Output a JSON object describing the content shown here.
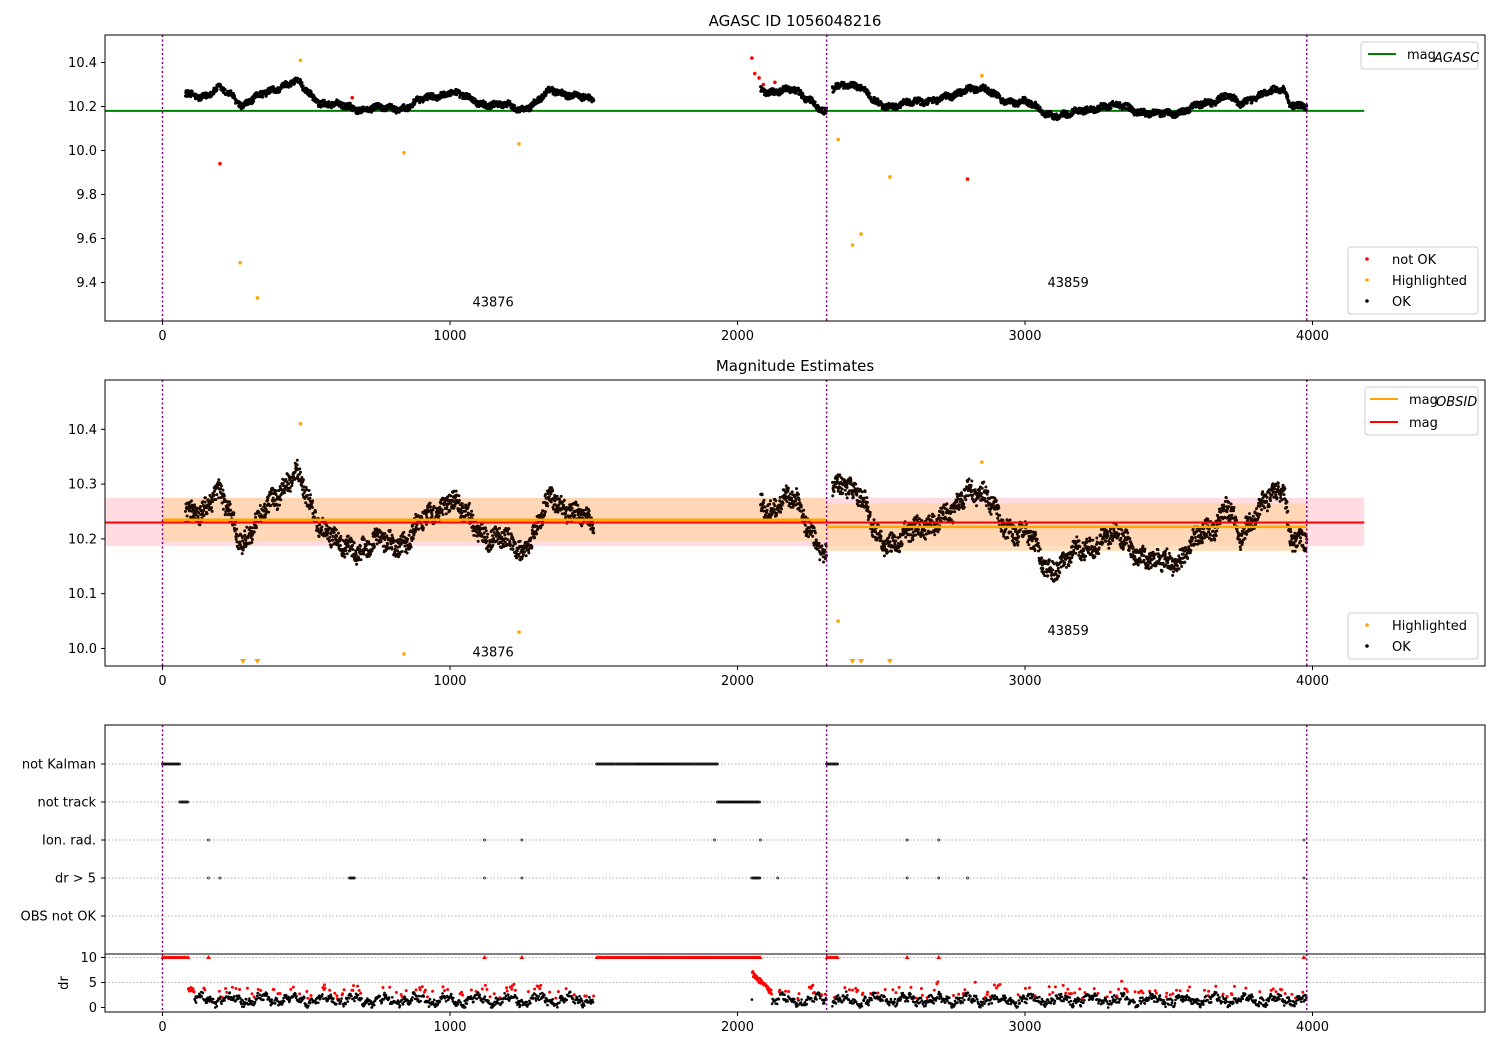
{
  "chart_data": [
    {
      "id": "top",
      "type": "scatter",
      "title": "AGASC ID 1056048216",
      "xlim": [
        -200,
        4600
      ],
      "ylim": [
        9.225,
        10.525
      ],
      "xticks": [
        "0",
        "1000",
        "2000",
        "3000",
        "4000"
      ],
      "yticks": [
        "9.4",
        "9.6",
        "9.8",
        "10.0",
        "10.2",
        "10.4"
      ],
      "colors": {
        "ok": "#000000",
        "highlighted": "#ffa500",
        "not_ok": "#ff0000",
        "agasc": "#008000",
        "obs_boundary": "#800080"
      },
      "obs_boundaries": [
        0,
        2310,
        3980
      ],
      "obsid_labels": [
        {
          "text": "43876",
          "x": 1150,
          "y": 9.29
        },
        {
          "text": "43859",
          "x": 3150,
          "y": 9.38
        }
      ],
      "mag_agasc": {
        "value": 10.18,
        "x": [
          -200,
          4180
        ]
      },
      "series": [
        {
          "name": "not OK",
          "x": [
            200,
            2050,
            2060,
            2075,
            2090,
            2130,
            2800,
            660
          ],
          "y": [
            9.94,
            10.42,
            10.35,
            10.33,
            10.3,
            10.31,
            9.87,
            10.24
          ]
        },
        {
          "name": "Highlighted",
          "x": [
            270,
            330,
            480,
            840,
            1240,
            2350,
            2400,
            2430,
            2530,
            2850
          ],
          "y": [
            9.49,
            9.33,
            10.41,
            9.99,
            10.03,
            10.05,
            9.57,
            9.62,
            9.88,
            10.34
          ]
        },
        {
          "name": "OK",
          "segments": [
            {
              "x_start": 80,
              "x_end": 1500,
              "anchors": [
                [
                  80,
                  10.27
                ],
                [
                  150,
                  10.24
                ],
                [
                  200,
                  10.28
                ],
                [
                  240,
                  10.26
                ],
                [
                  280,
                  10.2
                ],
                [
                  330,
                  10.24
                ],
                [
                  380,
                  10.28
                ],
                [
                  430,
                  10.3
                ],
                [
                  470,
                  10.31
                ],
                [
                  500,
                  10.27
                ],
                [
                  550,
                  10.22
                ],
                [
                  620,
                  10.2
                ],
                [
                  700,
                  10.19
                ],
                [
                  780,
                  10.19
                ],
                [
                  850,
                  10.2
                ],
                [
                  950,
                  10.25
                ],
                [
                  1000,
                  10.27
                ],
                [
                  1050,
                  10.24
                ],
                [
                  1100,
                  10.22
                ],
                [
                  1200,
                  10.2
                ],
                [
                  1250,
                  10.19
                ],
                [
                  1300,
                  10.22
                ],
                [
                  1350,
                  10.27
                ],
                [
                  1420,
                  10.26
                ],
                [
                  1500,
                  10.22
                ]
              ],
              "noise": 0.018
            },
            {
              "x_start": 2080,
              "x_end": 2310,
              "anchors": [
                [
                  2080,
                  10.28
                ],
                [
                  2130,
                  10.27
                ],
                [
                  2200,
                  10.27
                ],
                [
                  2260,
                  10.23
                ],
                [
                  2300,
                  10.17
                ]
              ],
              "noise": 0.018
            },
            {
              "x_start": 2330,
              "x_end": 3980,
              "anchors": [
                [
                  2330,
                  10.28
                ],
                [
                  2370,
                  10.31
                ],
                [
                  2420,
                  10.29
                ],
                [
                  2480,
                  10.22
                ],
                [
                  2560,
                  10.2
                ],
                [
                  2650,
                  10.23
                ],
                [
                  2750,
                  10.24
                ],
                [
                  2800,
                  10.29
                ],
                [
                  2850,
                  10.28
                ],
                [
                  2920,
                  10.23
                ],
                [
                  3000,
                  10.22
                ],
                [
                  3070,
                  10.17
                ],
                [
                  3150,
                  10.16
                ],
                [
                  3250,
                  10.2
                ],
                [
                  3350,
                  10.2
                ],
                [
                  3450,
                  10.16
                ],
                [
                  3550,
                  10.18
                ],
                [
                  3650,
                  10.22
                ],
                [
                  3700,
                  10.26
                ],
                [
                  3750,
                  10.2
                ],
                [
                  3830,
                  10.27
                ],
                [
                  3900,
                  10.27
                ],
                [
                  3920,
                  10.21
                ],
                [
                  3980,
                  10.21
                ]
              ],
              "noise": 0.018
            }
          ]
        }
      ],
      "legend_top": {
        "line_label": "mag",
        "line_sub": "AGASC"
      },
      "legend_bottom": [
        "not OK",
        "Highlighted",
        "OK"
      ]
    },
    {
      "id": "middle",
      "type": "scatter",
      "title": "Magnitude Estimates",
      "xlim": [
        -200,
        4600
      ],
      "ylim": [
        9.968,
        10.49
      ],
      "xticks": [
        "0",
        "1000",
        "2000",
        "3000",
        "4000"
      ],
      "yticks": [
        "10.0",
        "10.1",
        "10.2",
        "10.3",
        "10.4"
      ],
      "colors": {
        "ok": "#000000",
        "highlighted": "#ffa500",
        "mag": "#ff0000",
        "mag_obsid": "#ffa500",
        "band_mag": "#ffc0cb",
        "band_obsid": "#ffd5a8",
        "obs_boundary": "#800080"
      },
      "obs_boundaries": [
        0,
        2310,
        3980
      ],
      "obsid_labels": [
        {
          "text": "43876",
          "x": 1150,
          "y": 9.985
        },
        {
          "text": "43859",
          "x": 3150,
          "y": 10.025
        }
      ],
      "mag": {
        "value": 10.23,
        "band": [
          10.187,
          10.275
        ],
        "x": [
          -200,
          4180
        ]
      },
      "mag_obsid": [
        {
          "x": [
            0,
            2310
          ],
          "value": 10.235,
          "band": [
            10.195,
            10.275
          ]
        },
        {
          "x": [
            2310,
            3980
          ],
          "value": 10.222,
          "band": [
            10.178,
            10.265
          ]
        }
      ],
      "series": [
        {
          "name": "Highlighted",
          "x": [
            480,
            840,
            1240,
            2350,
            2850
          ],
          "y": [
            10.41,
            9.99,
            10.03,
            10.05,
            10.34
          ]
        },
        {
          "name": "Highlighted below range",
          "x": [
            280,
            330,
            2400,
            2430,
            2530
          ]
        },
        {
          "name": "OK",
          "segments": [
            {
              "x_start": 80,
              "x_end": 1500,
              "anchors": [
                [
                  80,
                  10.26
                ],
                [
                  150,
                  10.25
                ],
                [
                  200,
                  10.28
                ],
                [
                  240,
                  10.25
                ],
                [
                  280,
                  10.19
                ],
                [
                  330,
                  10.22
                ],
                [
                  380,
                  10.28
                ],
                [
                  430,
                  10.3
                ],
                [
                  470,
                  10.31
                ],
                [
                  500,
                  10.28
                ],
                [
                  550,
                  10.23
                ],
                [
                  620,
                  10.18
                ],
                [
                  700,
                  10.19
                ],
                [
                  780,
                  10.19
                ],
                [
                  850,
                  10.2
                ],
                [
                  950,
                  10.25
                ],
                [
                  1000,
                  10.28
                ],
                [
                  1050,
                  10.24
                ],
                [
                  1100,
                  10.22
                ],
                [
                  1200,
                  10.19
                ],
                [
                  1250,
                  10.18
                ],
                [
                  1300,
                  10.22
                ],
                [
                  1350,
                  10.27
                ],
                [
                  1420,
                  10.26
                ],
                [
                  1500,
                  10.21
                ]
              ],
              "noise": 0.022
            },
            {
              "x_start": 2080,
              "x_end": 2310,
              "anchors": [
                [
                  2080,
                  10.27
                ],
                [
                  2130,
                  10.26
                ],
                [
                  2200,
                  10.27
                ],
                [
                  2260,
                  10.22
                ],
                [
                  2300,
                  10.16
                ]
              ],
              "noise": 0.022
            },
            {
              "x_start": 2330,
              "x_end": 3980,
              "anchors": [
                [
                  2330,
                  10.29
                ],
                [
                  2370,
                  10.31
                ],
                [
                  2420,
                  10.28
                ],
                [
                  2480,
                  10.21
                ],
                [
                  2560,
                  10.19
                ],
                [
                  2650,
                  10.23
                ],
                [
                  2750,
                  10.24
                ],
                [
                  2800,
                  10.3
                ],
                [
                  2850,
                  10.28
                ],
                [
                  2920,
                  10.23
                ],
                [
                  3000,
                  10.21
                ],
                [
                  3070,
                  10.15
                ],
                [
                  3150,
                  10.16
                ],
                [
                  3250,
                  10.2
                ],
                [
                  3350,
                  10.2
                ],
                [
                  3450,
                  10.15
                ],
                [
                  3550,
                  10.17
                ],
                [
                  3650,
                  10.22
                ],
                [
                  3700,
                  10.27
                ],
                [
                  3750,
                  10.19
                ],
                [
                  3830,
                  10.28
                ],
                [
                  3900,
                  10.28
                ],
                [
                  3920,
                  10.2
                ],
                [
                  3980,
                  10.21
                ]
              ],
              "noise": 0.022
            }
          ]
        }
      ],
      "legend_top": [
        {
          "label": "mag",
          "sub": "OBSID",
          "color": "#ffa500"
        },
        {
          "label": "mag",
          "sub": "",
          "color": "#ff0000"
        }
      ],
      "legend_bottom": [
        "Highlighted",
        "OK"
      ]
    },
    {
      "id": "flags",
      "type": "scatter",
      "xlim": [
        -200,
        4600
      ],
      "categories": [
        "not Kalman",
        "not track",
        "Ion. rad.",
        "dr > 5",
        "OBS not OK"
      ],
      "obs_boundaries": [
        0,
        2310,
        3980
      ],
      "flags": [
        {
          "category": "not Kalman",
          "ranges": [
            [
              0,
              60
            ],
            [
              1510,
              1930
            ],
            [
              2310,
              2350
            ]
          ],
          "points": []
        },
        {
          "category": "not track",
          "ranges": [
            [
              60,
              90
            ],
            [
              1930,
              2080
            ]
          ],
          "points": []
        },
        {
          "category": "Ion. rad.",
          "ranges": [],
          "points": [
            160,
            1120,
            1250,
            1920,
            2080,
            2590,
            2700,
            3970
          ]
        },
        {
          "category": "dr > 5",
          "ranges": [
            [
              650,
              670
            ],
            [
              2050,
              2080
            ]
          ],
          "points": [
            160,
            200,
            1120,
            1250,
            2140,
            2590,
            2700,
            2800,
            3970
          ]
        },
        {
          "category": "OBS not OK",
          "ranges": [],
          "points": []
        }
      ]
    },
    {
      "id": "dr",
      "type": "scatter",
      "xlim": [
        -200,
        4600
      ],
      "ylim": [
        -0.5,
        10.5
      ],
      "ylabel": "dr",
      "yticks": [
        "0",
        "5",
        "10"
      ],
      "xticks": [
        "0",
        "1000",
        "2000",
        "3000",
        "4000"
      ],
      "obs_boundaries": [
        0,
        2310,
        3980
      ],
      "saturated_ranges": [
        [
          0,
          90
        ],
        [
          1510,
          2080
        ],
        [
          2310,
          2350
        ]
      ],
      "saturated_points": [
        160,
        1120,
        1250,
        2590,
        2700,
        3970
      ],
      "segments": [
        [
          90,
          1500
        ],
        [
          2050,
          2310
        ],
        [
          2330,
          3980
        ]
      ],
      "colors": {
        "ok": "#000000",
        "not_ok": "#ff0000"
      }
    }
  ]
}
